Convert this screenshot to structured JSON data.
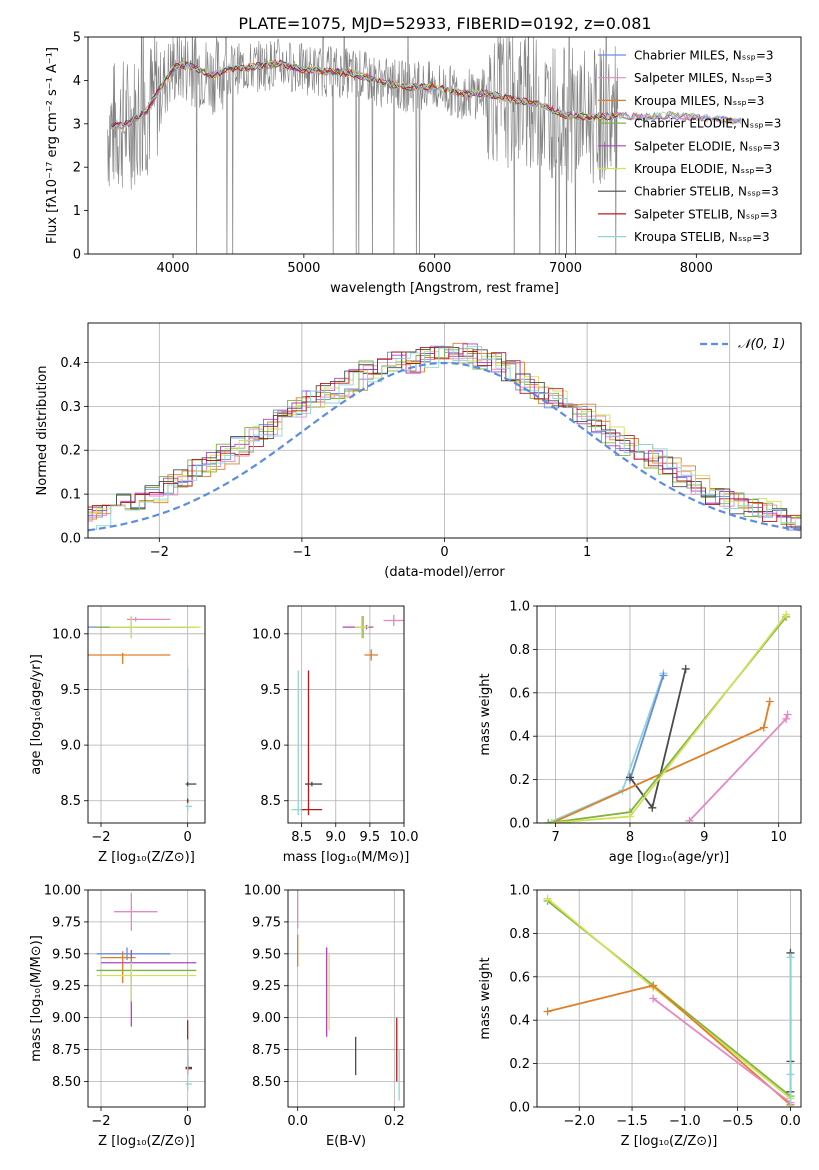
{
  "title": "PLATE=1075, MJD=52933, FIBERID=0192, z=0.081",
  "colors": {
    "chabrier_miles": "#6b8ce6",
    "salpeter_miles": "#e887c4",
    "kroupa_miles": "#e07f2a",
    "chabrier_elodie": "#7fb33f",
    "salpeter_elodie": "#b042c4",
    "kroupa_elodie": "#d3e05a",
    "chabrier_stelib": "#4a4a4a",
    "salpeter_stelib": "#b81b1b",
    "kroupa_stelib": "#8fd6d6",
    "data": "#808080",
    "grid": "#b0b0b0"
  },
  "chart_data": [
    {
      "id": "spectrum",
      "type": "line",
      "xlabel": "wavelength [Angstrom, rest frame]",
      "ylabel": "Flux [fλ10⁻¹⁷ erg cm⁻² s⁻¹ A⁻¹]",
      "xlim": [
        3350,
        8800
      ],
      "ylim": [
        0,
        5
      ],
      "xticks": [
        "4000",
        "5000",
        "6000",
        "7000",
        "8000"
      ],
      "yticks": [
        "0",
        "1",
        "2",
        "3",
        "4",
        "5"
      ],
      "grid": false,
      "legend_position": "top-right",
      "continuum": {
        "x": [
          3500,
          3650,
          3800,
          3900,
          4000,
          4100,
          4200,
          4300,
          4400,
          4600,
          4800,
          5000,
          5200,
          5400,
          5600,
          5800,
          6000,
          6200,
          6400,
          6600,
          6800,
          7000,
          7200,
          7400,
          7600,
          7800,
          8000,
          8200,
          8350
        ],
        "y": [
          2.9,
          3.0,
          3.3,
          3.8,
          4.3,
          4.35,
          4.25,
          4.1,
          4.25,
          4.3,
          4.4,
          4.25,
          4.2,
          4.15,
          3.95,
          3.85,
          3.85,
          3.7,
          3.7,
          3.55,
          3.45,
          3.2,
          3.15,
          3.2,
          3.15,
          3.2,
          3.15,
          3.1,
          3.05
        ]
      },
      "series": [
        {
          "name": "Chabrier MILES, N_SSP=3",
          "key": "chabrier_miles"
        },
        {
          "name": "Salpeter MILES, N_SSP=3",
          "key": "salpeter_miles"
        },
        {
          "name": "Kroupa MILES, N_SSP=3",
          "key": "kroupa_miles"
        },
        {
          "name": "Chabrier ELODIE, N_SSP=3",
          "key": "chabrier_elodie"
        },
        {
          "name": "Salpeter ELODIE, N_SSP=3",
          "key": "salpeter_elodie"
        },
        {
          "name": "Kroupa ELODIE, N_SSP=3",
          "key": "kroupa_elodie"
        },
        {
          "name": "Chabrier STELIB, N_SSP=3",
          "key": "chabrier_stelib"
        },
        {
          "name": "Salpeter STELIB, N_SSP=3",
          "key": "salpeter_stelib"
        },
        {
          "name": "Kroupa STELIB, N_SSP=3",
          "key": "kroupa_stelib"
        }
      ]
    },
    {
      "id": "residuals",
      "type": "line",
      "xlabel": "(data-model)/error",
      "ylabel": "Normed distribution",
      "xlim": [
        -2.5,
        2.5
      ],
      "ylim": [
        0,
        0.49
      ],
      "xticks": [
        "−2",
        "−1",
        "0",
        "1",
        "2"
      ],
      "yticks": [
        "0.0",
        "0.1",
        "0.2",
        "0.3",
        "0.4"
      ],
      "grid": true,
      "legend_position": "top-right",
      "reference_label": "𝒩(0, 1)",
      "bin_width": 0.1,
      "histogram_profile": [
        0.02,
        0.03,
        0.03,
        0.04,
        0.04,
        0.05,
        0.06,
        0.08,
        0.09,
        0.1,
        0.12,
        0.14,
        0.16,
        0.17,
        0.19,
        0.21,
        0.23,
        0.25,
        0.27,
        0.3,
        0.32,
        0.33,
        0.34,
        0.36,
        0.38,
        0.39,
        0.4,
        0.4,
        0.41,
        0.42,
        0.42,
        0.42,
        0.41,
        0.4,
        0.38,
        0.35,
        0.33,
        0.32,
        0.3,
        0.28,
        0.26,
        0.23,
        0.21,
        0.2,
        0.18,
        0.16,
        0.14,
        0.12,
        0.1,
        0.09,
        0.08,
        0.07,
        0.06,
        0.05,
        0.04,
        0.03,
        0.03,
        0.02,
        0.02,
        0.02
      ]
    },
    {
      "id": "age_vs_Z",
      "type": "scatter",
      "xlabel": "Z [log₁₀(Z/Z⊙)]",
      "ylabel": "age  [log₁₀(age/yr)]",
      "xlim": [
        -2.3,
        0.4
      ],
      "ylim": [
        8.3,
        10.25
      ],
      "xticks": [
        "−2",
        "0"
      ],
      "yticks": [
        "8.5",
        "9.0",
        "9.5",
        "10.0"
      ],
      "grid": true,
      "points": [
        {
          "key": "chabrier_miles",
          "x": -1.3,
          "y": 10.06,
          "xerr": [
            1.0,
            1.3
          ],
          "yerr": [
            0.03,
            0.03
          ]
        },
        {
          "key": "salpeter_miles",
          "x": -1.2,
          "y": 10.13,
          "xerr": [
            0.2,
            0.8
          ],
          "yerr": [
            0.02,
            0.02
          ]
        },
        {
          "key": "kroupa_miles",
          "x": -1.5,
          "y": 9.81,
          "xerr": [
            0.8,
            1.1
          ],
          "yerr": [
            0.08,
            0.02
          ]
        },
        {
          "key": "chabrier_elodie",
          "x": -1.3,
          "y": 10.06,
          "xerr": [
            0.8,
            1.5
          ],
          "yerr": [
            0.1,
            0.1
          ]
        },
        {
          "key": "kroupa_elodie",
          "x": -1.3,
          "y": 10.06,
          "xerr": [
            0.5,
            1.6
          ],
          "yerr": [
            0.1,
            0.1
          ]
        },
        {
          "key": "kroupa_stelib",
          "x": 0.0,
          "y": 8.45,
          "xerr": [
            0.05,
            0.1
          ],
          "yerr": [
            0.05,
            1.25
          ]
        },
        {
          "key": "chabrier_stelib",
          "x": 0.0,
          "y": 8.65,
          "xerr": [
            0.05,
            0.2
          ],
          "yerr": [
            0.02,
            0.02
          ]
        },
        {
          "key": "salpeter_stelib",
          "x": 0.0,
          "y": 8.5,
          "xerr": [
            0.02,
            0.02
          ],
          "yerr": [
            0.02,
            0.02
          ]
        }
      ]
    },
    {
      "id": "age_vs_mass",
      "type": "scatter",
      "xlabel": "mass [log₁₀(M/M⊙)]",
      "ylabel": "",
      "xlim": [
        8.3,
        10.0
      ],
      "ylim": [
        8.3,
        10.25
      ],
      "xticks": [
        "8.5",
        "9.0",
        "9.5",
        "10.0"
      ],
      "yticks": [
        "8.5",
        "9.0",
        "9.5",
        "10.0"
      ],
      "grid": true,
      "points": [
        {
          "key": "salpeter_miles",
          "x": 9.85,
          "y": 10.12,
          "xerr": [
            0.15,
            0.15
          ],
          "yerr": [
            0.05,
            0.05
          ]
        },
        {
          "key": "salpeter_elodie",
          "x": 9.45,
          "y": 10.06,
          "xerr": [
            0.35,
            0.1
          ],
          "yerr": [
            0.02,
            0.02
          ]
        },
        {
          "key": "chabrier_elodie",
          "x": 9.4,
          "y": 10.06,
          "xerr": [
            0.1,
            0.1
          ],
          "yerr": [
            0.1,
            0.1
          ]
        },
        {
          "key": "kroupa_elodie",
          "x": 9.38,
          "y": 10.06,
          "xerr": [
            0.1,
            0.1
          ],
          "yerr": [
            0.1,
            0.1
          ]
        },
        {
          "key": "kroupa_miles",
          "x": 9.52,
          "y": 9.81,
          "xerr": [
            0.1,
            0.1
          ],
          "yerr": [
            0.05,
            0.05
          ]
        },
        {
          "key": "kroupa_stelib",
          "x": 8.45,
          "y": 8.42,
          "xerr": [
            0.1,
            0.1
          ],
          "yerr": [
            0.05,
            1.25
          ]
        },
        {
          "key": "chabrier_stelib",
          "x": 8.65,
          "y": 8.65,
          "xerr": [
            0.1,
            0.15
          ],
          "yerr": [
            0.02,
            0.02
          ]
        },
        {
          "key": "salpeter_stelib",
          "x": 8.6,
          "y": 8.42,
          "xerr": [
            0.1,
            0.2
          ],
          "yerr": [
            0.05,
            1.25
          ]
        }
      ]
    },
    {
      "id": "weight_vs_age",
      "type": "line",
      "xlabel": "age  [log₁₀(age/yr)]",
      "ylabel": "mass weight",
      "xlim": [
        6.75,
        10.3
      ],
      "ylim": [
        0,
        1
      ],
      "xticks": [
        "7",
        "8",
        "9",
        "10"
      ],
      "yticks": [
        "0.0",
        "0.2",
        "0.4",
        "0.6",
        "0.8",
        "1.0"
      ],
      "grid": true,
      "series": [
        {
          "key": "kroupa_stelib",
          "x": [
            6.9,
            7.9,
            8.45
          ],
          "y": [
            0.0,
            0.15,
            0.69
          ]
        },
        {
          "key": "chabrier_miles",
          "x": [
            8.0,
            8.45
          ],
          "y": [
            0.2,
            0.68
          ]
        },
        {
          "key": "chabrier_stelib",
          "x": [
            8.0,
            8.3,
            8.75
          ],
          "y": [
            0.21,
            0.07,
            0.71
          ]
        },
        {
          "key": "kroupa_miles",
          "x": [
            6.95,
            9.8,
            9.88
          ],
          "y": [
            0.0,
            0.44,
            0.56
          ]
        },
        {
          "key": "salpeter_miles",
          "x": [
            8.8,
            10.1,
            10.12
          ],
          "y": [
            0.01,
            0.48,
            0.5
          ]
        },
        {
          "key": "chabrier_elodie",
          "x": [
            6.9,
            8.0,
            10.1
          ],
          "y": [
            0.0,
            0.05,
            0.95
          ]
        },
        {
          "key": "kroupa_elodie",
          "x": [
            6.95,
            8.0,
            10.1
          ],
          "y": [
            0.0,
            0.03,
            0.96
          ]
        }
      ]
    },
    {
      "id": "mass_vs_Z",
      "type": "scatter",
      "xlabel": "Z [log₁₀(Z/Z⊙)]",
      "ylabel": "mass [log₁₀(M/M⊙)]",
      "xlim": [
        -2.3,
        0.4
      ],
      "ylim": [
        8.3,
        10.0
      ],
      "xticks": [
        "−2",
        "0"
      ],
      "yticks": [
        "8.50",
        "8.75",
        "9.00",
        "9.25",
        "9.50",
        "9.75",
        "10.00"
      ],
      "grid": true,
      "points": [
        {
          "key": "salpeter_miles",
          "x": -1.3,
          "y": 9.83,
          "xerr": [
            0.4,
            0.6
          ],
          "yerr": [
            0.15,
            0.15
          ]
        },
        {
          "key": "chabrier_miles",
          "x": -1.4,
          "y": 9.5,
          "xerr": [
            0.7,
            1.0
          ],
          "yerr": [
            0.05,
            0.05
          ]
        },
        {
          "key": "kroupa_miles",
          "x": -1.5,
          "y": 9.47,
          "xerr": [
            0.5,
            0.3
          ],
          "yerr": [
            0.2,
            0.05
          ]
        },
        {
          "key": "salpeter_elodie",
          "x": -1.3,
          "y": 9.43,
          "xerr": [
            0.7,
            1.5
          ],
          "yerr": [
            0.5,
            0.1
          ]
        },
        {
          "key": "chabrier_elodie",
          "x": -1.3,
          "y": 9.37,
          "xerr": [
            0.8,
            1.5
          ],
          "yerr": [
            0.25,
            0.1
          ]
        },
        {
          "key": "kroupa_elodie",
          "x": -1.3,
          "y": 9.33,
          "xerr": [
            0.8,
            1.5
          ],
          "yerr": [
            0.2,
            0.1
          ]
        },
        {
          "key": "salpeter_stelib",
          "x": 0.0,
          "y": 8.6,
          "xerr": [
            0.05,
            0.1
          ],
          "yerr": [
            0.05,
            0.38
          ]
        },
        {
          "key": "chabrier_stelib",
          "x": 0.0,
          "y": 8.61,
          "xerr": [
            0.05,
            0.1
          ],
          "yerr": [
            0.05,
            0.1
          ]
        },
        {
          "key": "kroupa_stelib",
          "x": 0.0,
          "y": 8.48,
          "xerr": [
            0.05,
            0.1
          ],
          "yerr": [
            0.05,
            0.35
          ]
        }
      ]
    },
    {
      "id": "mass_vs_ebv",
      "type": "scatter",
      "xlabel": "E(B-V)",
      "ylabel": "",
      "xlim": [
        -0.02,
        0.22
      ],
      "ylim": [
        8.3,
        10.0
      ],
      "xticks": [
        "0.0",
        "0.2"
      ],
      "yticks": [
        "8.50",
        "8.75",
        "9.00",
        "9.25",
        "9.50",
        "9.75",
        "10.00"
      ],
      "grid": true,
      "points": [
        {
          "key": "salpeter_miles",
          "x": 0.0,
          "y": 9.85,
          "yerr": [
            0.15,
            0.15
          ]
        },
        {
          "key": "kroupa_miles",
          "x": 0.0,
          "y": 9.5,
          "yerr": [
            0.1,
            0.15
          ]
        },
        {
          "key": "salpeter_elodie",
          "x": 0.06,
          "y": 9.2,
          "yerr": [
            0.35,
            0.35
          ]
        },
        {
          "key": "kroupa_elodie",
          "x": 0.065,
          "y": 9.2,
          "yerr": [
            0.3,
            0.3
          ]
        },
        {
          "key": "chabrier_stelib",
          "x": 0.12,
          "y": 8.7,
          "yerr": [
            0.15,
            0.15
          ]
        },
        {
          "key": "salpeter_stelib",
          "x": 0.205,
          "y": 8.75,
          "yerr": [
            0.25,
            0.25
          ]
        },
        {
          "key": "kroupa_stelib",
          "x": 0.21,
          "y": 8.55,
          "yerr": [
            0.2,
            0.2
          ]
        }
      ]
    },
    {
      "id": "weight_vs_Z",
      "type": "line",
      "xlabel": "Z [log₁₀(Z/Z⊙)]",
      "ylabel": "mass weight",
      "xlim": [
        -2.4,
        0.1
      ],
      "ylim": [
        0,
        1
      ],
      "xticks": [
        "−2.0",
        "−1.5",
        "−1.0",
        "−0.5",
        "0.0"
      ],
      "yticks": [
        "0.0",
        "0.2",
        "0.4",
        "0.6",
        "0.8",
        "1.0"
      ],
      "grid": true,
      "series": [
        {
          "key": "chabrier_elodie",
          "x": [
            -2.3,
            -1.3,
            0.0
          ],
          "y": [
            0.95,
            0.56,
            0.05
          ]
        },
        {
          "key": "kroupa_elodie",
          "x": [
            -2.3,
            -1.3,
            0.0
          ],
          "y": [
            0.96,
            0.55,
            0.04
          ]
        },
        {
          "key": "kroupa_miles",
          "x": [
            -2.3,
            -1.3,
            0.0
          ],
          "y": [
            0.44,
            0.56,
            0.01
          ]
        },
        {
          "key": "salpeter_miles",
          "x": [
            -1.3,
            0.0
          ],
          "y": [
            0.5,
            0.02
          ]
        },
        {
          "key": "chabrier_stelib",
          "x": [
            0.0,
            0.0,
            0.0
          ],
          "y": [
            0.71,
            0.21,
            0.07
          ]
        },
        {
          "key": "kroupa_stelib",
          "x": [
            0.0,
            0.0,
            0.0
          ],
          "y": [
            0.69,
            0.15,
            0.0
          ]
        }
      ]
    }
  ]
}
